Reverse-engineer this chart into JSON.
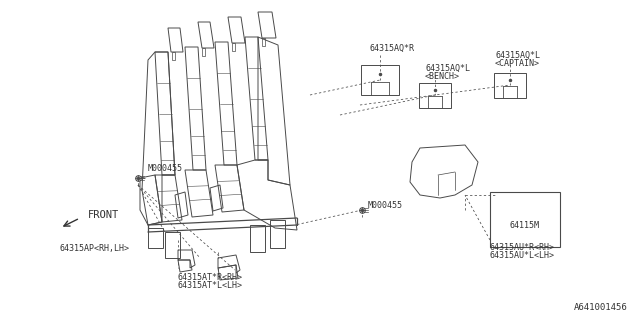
{
  "bg_color": "#ffffff",
  "line_color": "#4a4a4a",
  "text_color": "#333333",
  "font_size": 6.0,
  "watermark": "A641001456",
  "labels": {
    "M000455_left": "M000455",
    "M000455_right": "M000455",
    "front": "FRONT",
    "p64315AQR": "64315AQ*R",
    "p64315AQL_bench_1": "64315AQ*L",
    "p64315AQL_bench_2": "<BENCH>",
    "p64315AQL_captain_1": "64315AQ*L",
    "p64315AQL_captain_2": "<CAPTAIN>",
    "p64315AP": "64315AP<RH,LH>",
    "p64315ATR": "64315AT*R<RH>",
    "p64315ATL": "64315AT*L<LH>",
    "p64115M": "64115M",
    "p64315AUR": "64315AU*R<RH>",
    "p64315AUL": "64315AU*L<LH>"
  },
  "seat_color": "#dddddd",
  "seat_line_color": "#4a4a4a"
}
